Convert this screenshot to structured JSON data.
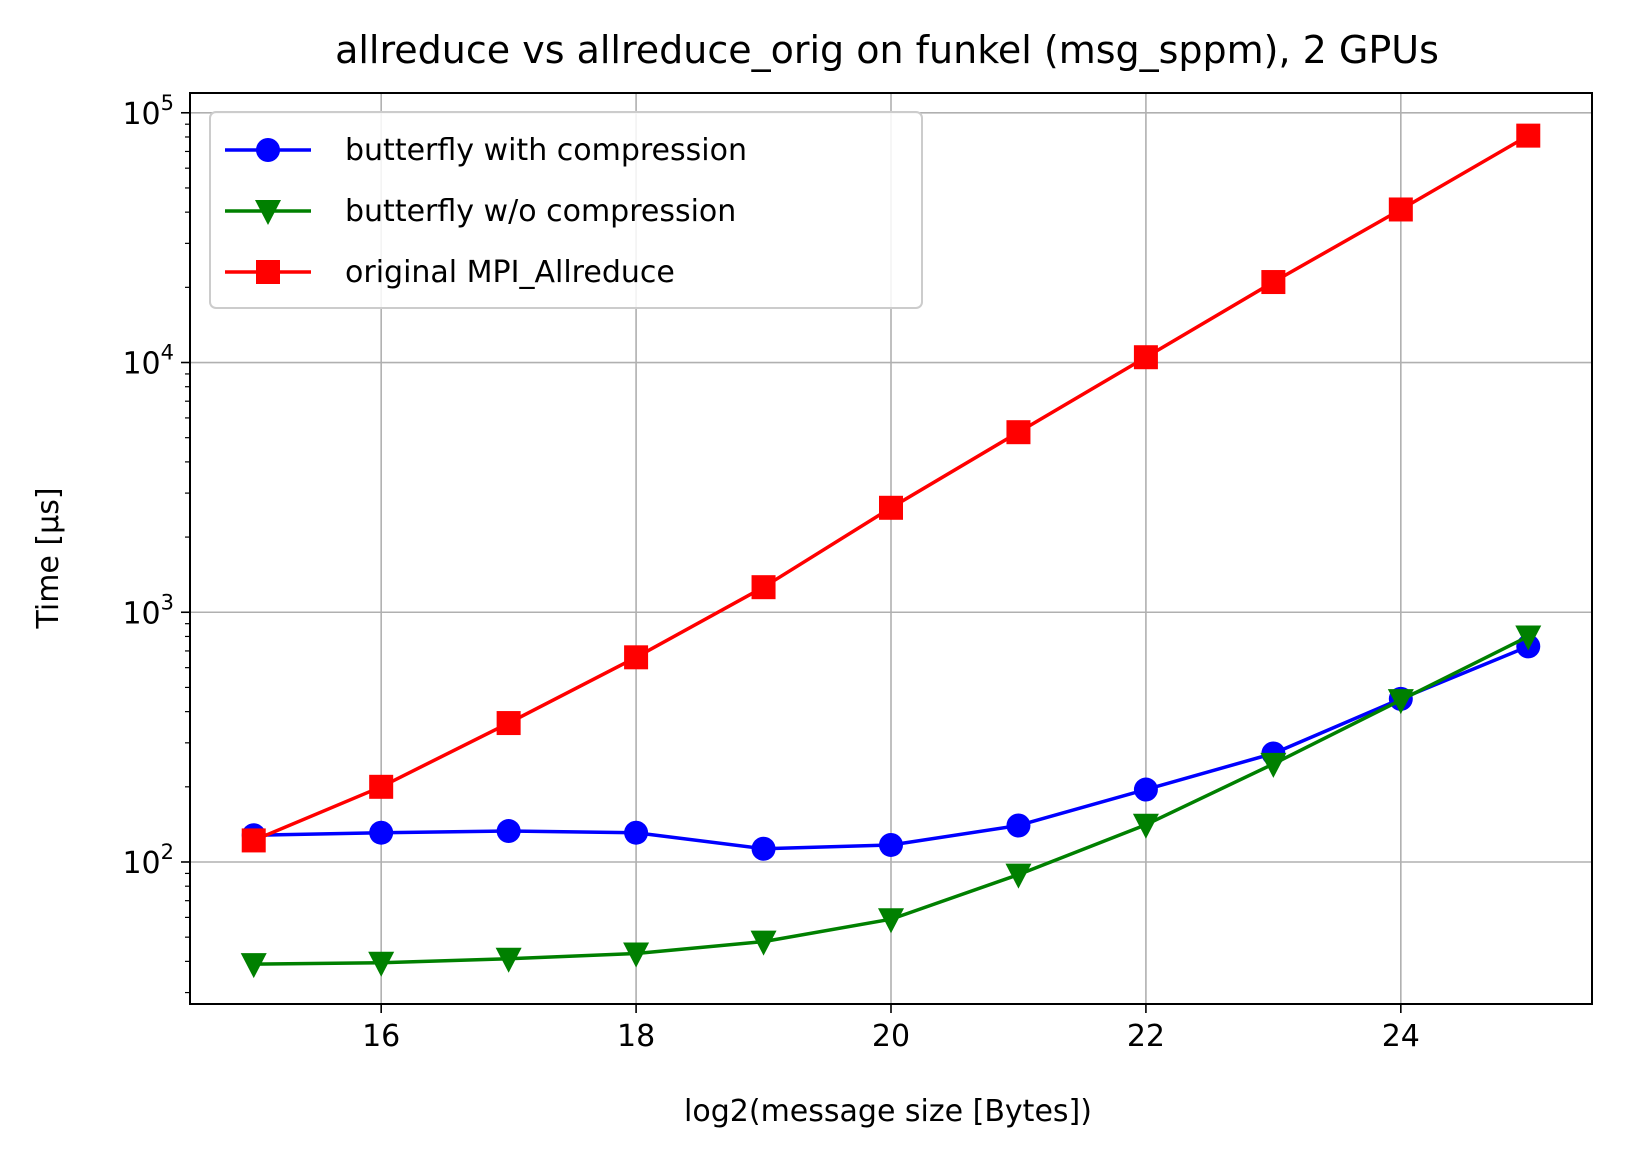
{
  "chart_data": {
    "type": "line",
    "title": "allreduce vs allreduce_orig on funkel (msg_sppm), 2 GPUs",
    "xlabel": "log2(message size [Bytes])",
    "ylabel": "Time [µs]",
    "xlim": [
      14.5,
      25.5
    ],
    "ylim": [
      27,
      120000
    ],
    "yscale": "log",
    "grid": true,
    "legend_position": "top-left",
    "x_ticks": [
      16,
      18,
      20,
      22,
      24
    ],
    "y_ticks": [
      {
        "base": "10",
        "exp": "2",
        "value": 100
      },
      {
        "base": "10",
        "exp": "3",
        "value": 1000
      },
      {
        "base": "10",
        "exp": "4",
        "value": 10000
      },
      {
        "base": "10",
        "exp": "5",
        "value": 100000
      }
    ],
    "x": [
      15,
      16,
      17,
      18,
      19,
      20,
      21,
      22,
      23,
      24,
      25
    ],
    "series": [
      {
        "name": "butterfly with compression",
        "color": "#0000ff",
        "marker": "circle",
        "values": [
          128,
          131,
          133,
          131,
          113,
          117,
          140,
          195,
          272,
          450,
          730
        ]
      },
      {
        "name": "butterfly w/o compression",
        "color": "#008000",
        "marker": "triangle-down",
        "values": [
          39,
          39.5,
          41,
          43,
          48,
          59,
          89,
          141,
          247,
          445,
          800
        ]
      },
      {
        "name": "original MPI_Allreduce",
        "color": "#ff0000",
        "marker": "square",
        "values": [
          122,
          200,
          360,
          660,
          1260,
          2620,
          5260,
          10500,
          21000,
          41000,
          81000
        ]
      }
    ]
  }
}
